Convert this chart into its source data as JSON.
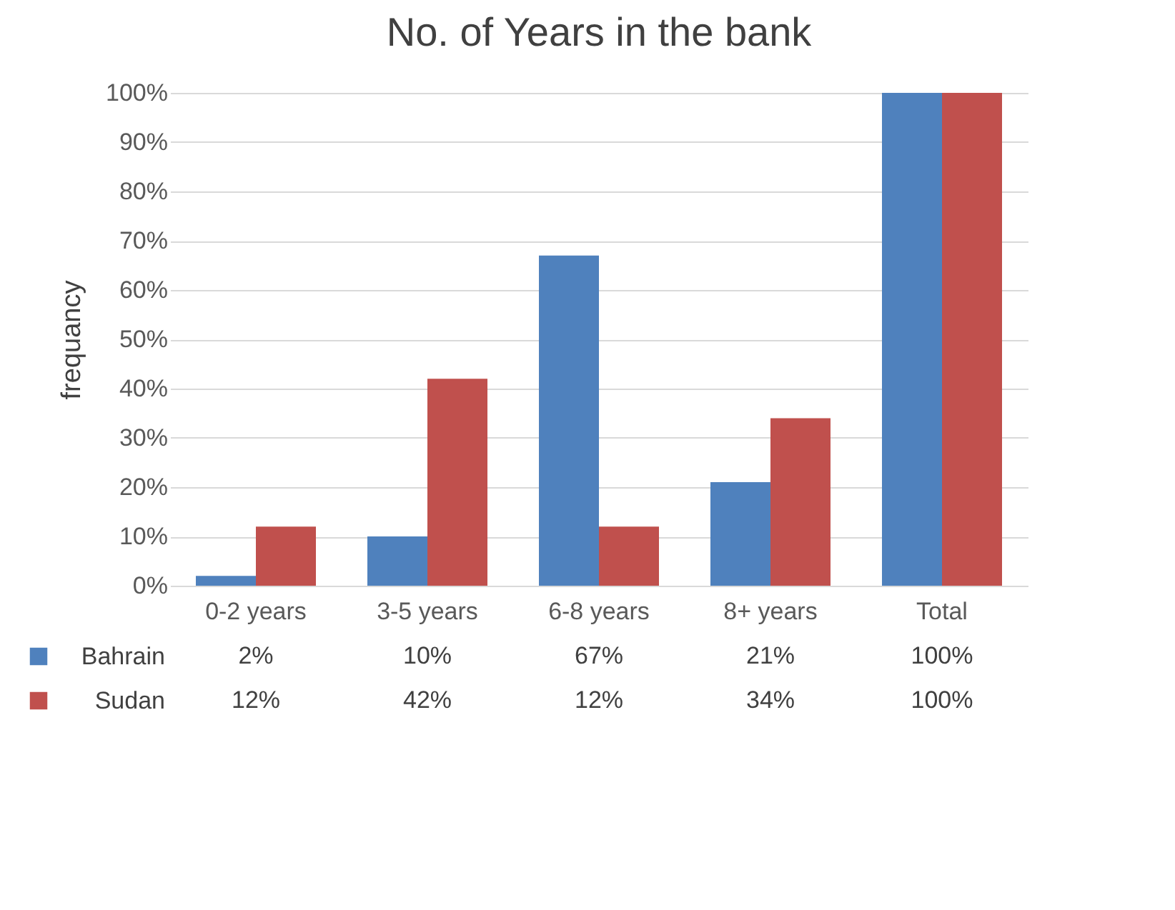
{
  "chart_data": {
    "type": "bar",
    "title": "No. of Years in the bank",
    "ylabel": "frequancy",
    "categories": [
      "0-2 years",
      "3-5 years",
      "6-8 years",
      "8+ years",
      "Total"
    ],
    "series": [
      {
        "name": "Bahrain",
        "color": "#4f81bd",
        "values": [
          2,
          10,
          67,
          21,
          100
        ],
        "value_labels": [
          "2%",
          "10%",
          "67%",
          "21%",
          "100%"
        ]
      },
      {
        "name": "Sudan",
        "color": "#c0504d",
        "values": [
          12,
          42,
          12,
          34,
          100
        ],
        "value_labels": [
          "12%",
          "42%",
          "12%",
          "34%",
          "100%"
        ]
      }
    ],
    "ylim": [
      0,
      100
    ],
    "yticks": [
      {
        "value": 0,
        "label": "0%"
      },
      {
        "value": 10,
        "label": "10%"
      },
      {
        "value": 20,
        "label": "20%"
      },
      {
        "value": 30,
        "label": "30%"
      },
      {
        "value": 40,
        "label": "40%"
      },
      {
        "value": 50,
        "label": "50%"
      },
      {
        "value": 60,
        "label": "60%"
      },
      {
        "value": 70,
        "label": "70%"
      },
      {
        "value": 80,
        "label": "80%"
      },
      {
        "value": 90,
        "label": "90%"
      },
      {
        "value": 100,
        "label": "100%"
      }
    ],
    "grid": "y",
    "legend": "bottom"
  }
}
